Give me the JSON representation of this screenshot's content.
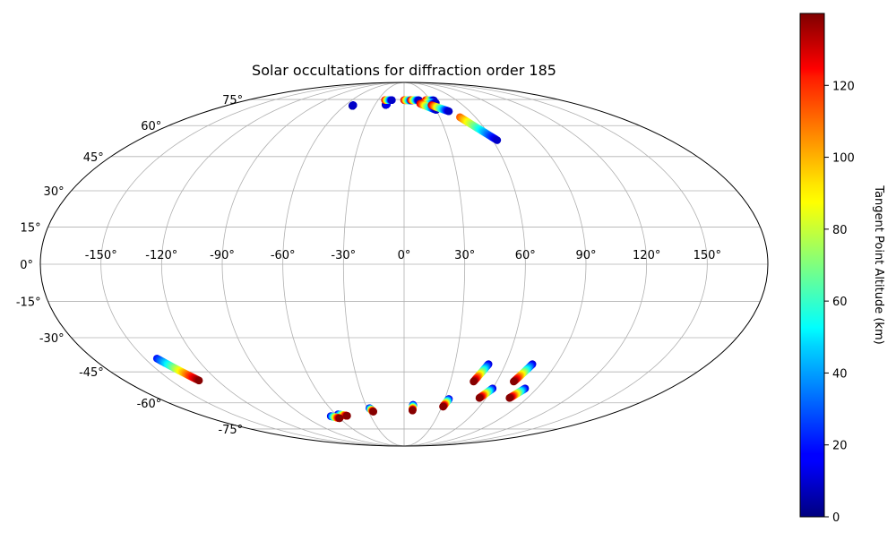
{
  "chart_data": {
    "type": "scatter",
    "projection": "mollweide",
    "title": "Solar occultations for diffraction order 185",
    "grid": true,
    "x_ticks": [
      -150,
      -120,
      -90,
      -60,
      -30,
      0,
      30,
      60,
      90,
      120,
      150
    ],
    "y_ticks": [
      -75,
      -60,
      -45,
      -30,
      -15,
      0,
      15,
      30,
      45,
      60,
      75
    ],
    "colorbar": {
      "label": "Tangent Point Altitude (km)",
      "range": [
        0,
        140
      ],
      "ticks": [
        0,
        20,
        40,
        60,
        80,
        100,
        120
      ],
      "colormap": "jet",
      "placement": "right"
    },
    "tracks": [
      {
        "lon_start": -52,
        "lat_start": 71,
        "lon_end": -52,
        "lat_end": 71.4,
        "alt_start": 0,
        "alt_end": 10
      },
      {
        "lon_start": -19,
        "lat_start": 71.6,
        "lon_end": -18,
        "lat_end": 71.9,
        "alt_start": 0,
        "alt_end": 15
      },
      {
        "lon_start": -22,
        "lat_start": 74.6,
        "lon_end": -14,
        "lat_end": 74.6,
        "alt_start": 130,
        "alt_end": 10
      },
      {
        "lon_start": 0,
        "lat_start": 74.6,
        "lon_end": 9,
        "lat_end": 74.4,
        "alt_start": 130,
        "alt_end": 10
      },
      {
        "lon_start": 8,
        "lat_start": 74.6,
        "lon_end": 17,
        "lat_end": 74.5,
        "alt_start": 130,
        "alt_end": 10
      },
      {
        "lon_start": 25,
        "lat_start": 74.6,
        "lon_end": 34,
        "lat_end": 74.4,
        "alt_start": 130,
        "alt_end": 10
      },
      {
        "lon_start": 22,
        "lat_start": 73.5,
        "lon_end": 34,
        "lat_end": 72.8,
        "alt_start": 130,
        "alt_end": 10
      },
      {
        "lon_start": 17,
        "lat_start": 72.4,
        "lon_end": 30,
        "lat_end": 68.6,
        "alt_start": 130,
        "alt_end": 10
      },
      {
        "lon_start": 28,
        "lat_start": 71.4,
        "lon_end": 41,
        "lat_end": 67.8,
        "alt_start": 130,
        "alt_end": 10
      },
      {
        "lon_start": 47,
        "lat_start": 64.5,
        "lon_end": 63,
        "lat_end": 52.7,
        "alt_start": 110,
        "alt_end": 10
      },
      {
        "lon_start": -143,
        "lat_start": -39,
        "lon_end": -132,
        "lat_end": -49,
        "alt_start": 20,
        "alt_end": 139
      },
      {
        "lon_start": -58,
        "lat_start": -66.2,
        "lon_end": -51,
        "lat_end": -67,
        "alt_start": 10,
        "alt_end": 139
      },
      {
        "lon_start": -66,
        "lat_start": -67.2,
        "lon_end": -60,
        "lat_end": -68.4,
        "alt_start": 10,
        "alt_end": 139
      },
      {
        "lon_start": -28,
        "lat_start": -62.8,
        "lon_end": -26,
        "lat_end": -64.7,
        "alt_start": 10,
        "alt_end": 139
      },
      {
        "lon_start": 7,
        "lat_start": -61,
        "lon_end": 7,
        "lat_end": -64.1,
        "alt_start": 10,
        "alt_end": 139
      },
      {
        "lon_start": 33,
        "lat_start": -58,
        "lon_end": 31,
        "lat_end": -62,
        "alt_start": 10,
        "alt_end": 139
      },
      {
        "lon_start": 50,
        "lat_start": -41.5,
        "lon_end": 45,
        "lat_end": -49.5,
        "alt_start": 10,
        "alt_end": 139
      },
      {
        "lon_start": 60,
        "lat_start": -52.8,
        "lon_end": 55,
        "lat_end": -57.5,
        "alt_start": 10,
        "alt_end": 139
      },
      {
        "lon_start": 76,
        "lat_start": -41.5,
        "lon_end": 71,
        "lat_end": -49.5,
        "alt_start": 10,
        "alt_end": 139
      },
      {
        "lon_start": 82,
        "lat_start": -52.8,
        "lon_end": 77,
        "lat_end": -57.5,
        "alt_start": 10,
        "alt_end": 139
      }
    ]
  }
}
